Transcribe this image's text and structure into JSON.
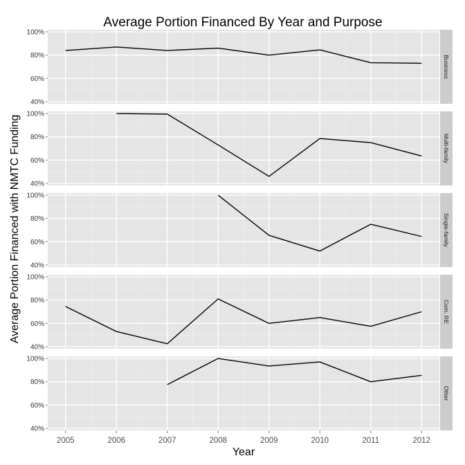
{
  "chart_data": {
    "type": "line",
    "title": "Average Portion Financed By Year and Purpose",
    "xlabel": "Year",
    "ylabel": "Average Portion Financed with NMTC Funding",
    "x": [
      2005,
      2006,
      2007,
      2008,
      2009,
      2010,
      2011,
      2012
    ],
    "ylim": [
      0.4,
      1.0
    ],
    "yticks": [
      0.4,
      0.6,
      0.8,
      1.0
    ],
    "ytick_labels": [
      "40%",
      "60%",
      "80%",
      "100%"
    ],
    "grid": true,
    "series": [
      {
        "name": "Business",
        "values": [
          0.84,
          0.87,
          0.84,
          0.86,
          0.8,
          0.845,
          0.735,
          0.73
        ]
      },
      {
        "name": "Multi-family",
        "values": [
          null,
          1.0,
          0.995,
          0.73,
          0.46,
          0.785,
          0.75,
          0.635
        ]
      },
      {
        "name": "Single-family",
        "values": [
          null,
          null,
          null,
          1.0,
          0.655,
          0.52,
          0.75,
          0.645
        ]
      },
      {
        "name": "Com. RE",
        "values": [
          0.745,
          0.53,
          0.425,
          0.81,
          0.6,
          0.65,
          0.575,
          0.7
        ]
      },
      {
        "name": "Other",
        "values": [
          null,
          null,
          0.775,
          1.0,
          0.935,
          0.97,
          0.8,
          0.855
        ]
      }
    ]
  }
}
